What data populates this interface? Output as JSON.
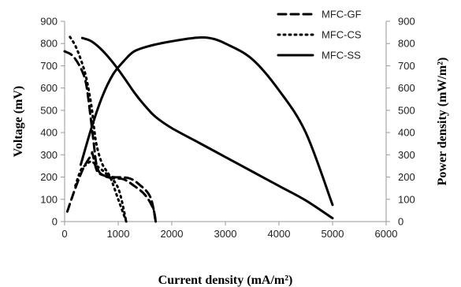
{
  "chart_data": {
    "type": "line",
    "title": "",
    "xlabel": "Current density (mA/m²)",
    "ylabel_left": "Voltage (mV)",
    "ylabel_right": "Power density (mW/m²)",
    "xlim": [
      0,
      6000
    ],
    "ylim_left": [
      0,
      900
    ],
    "ylim_right": [
      0,
      900
    ],
    "x_ticks": [
      "0",
      "1000",
      "2000",
      "3000",
      "4000",
      "5000",
      "6000"
    ],
    "y_ticks_left": [
      "0",
      "100",
      "200",
      "300",
      "400",
      "500",
      "600",
      "700",
      "800",
      "900"
    ],
    "y_ticks_right": [
      "0",
      "100",
      "200",
      "300",
      "400",
      "500",
      "600",
      "700",
      "800",
      "900"
    ],
    "grid": false,
    "legend_position": "top-right",
    "legend": [
      {
        "name": "MFC-GF",
        "dash": "10,6"
      },
      {
        "name": "MFC-CS",
        "dash": "2,5"
      },
      {
        "name": "MFC-SS",
        "dash": ""
      }
    ],
    "series": [
      {
        "name": "MFC-GF",
        "kind": "polarization",
        "axis": "left",
        "points": [
          [
            0,
            765
          ],
          [
            150,
            745
          ],
          [
            300,
            690
          ],
          [
            400,
            620
          ],
          [
            480,
            480
          ],
          [
            540,
            360
          ],
          [
            600,
            250
          ],
          [
            700,
            210
          ],
          [
            900,
            195
          ],
          [
            1100,
            190
          ],
          [
            1300,
            160
          ],
          [
            1500,
            120
          ],
          [
            1650,
            60
          ],
          [
            1700,
            0
          ]
        ]
      },
      {
        "name": "MFC-GF",
        "kind": "power",
        "axis": "right",
        "points": [
          [
            50,
            45
          ],
          [
            200,
            150
          ],
          [
            350,
            240
          ],
          [
            500,
            300
          ],
          [
            520,
            305
          ],
          [
            600,
            230
          ],
          [
            700,
            210
          ],
          [
            900,
            200
          ],
          [
            1200,
            195
          ],
          [
            1400,
            165
          ],
          [
            1600,
            110
          ],
          [
            1700,
            0
          ]
        ]
      },
      {
        "name": "MFC-CS",
        "kind": "polarization",
        "axis": "left",
        "points": [
          [
            100,
            830
          ],
          [
            200,
            790
          ],
          [
            300,
            730
          ],
          [
            400,
            650
          ],
          [
            500,
            520
          ],
          [
            550,
            420
          ],
          [
            600,
            340
          ],
          [
            700,
            260
          ],
          [
            850,
            200
          ],
          [
            1000,
            100
          ],
          [
            1150,
            0
          ]
        ]
      },
      {
        "name": "MFC-CS",
        "kind": "power",
        "axis": "right",
        "points": [
          [
            200,
            160
          ],
          [
            300,
            230
          ],
          [
            400,
            255
          ],
          [
            500,
            270
          ],
          [
            600,
            250
          ],
          [
            800,
            210
          ],
          [
            1000,
            150
          ],
          [
            1150,
            0
          ]
        ]
      },
      {
        "name": "MFC-SS",
        "kind": "polarization",
        "axis": "left",
        "points": [
          [
            330,
            825
          ],
          [
            500,
            810
          ],
          [
            700,
            770
          ],
          [
            900,
            715
          ],
          [
            1100,
            650
          ],
          [
            1300,
            580
          ],
          [
            1500,
            520
          ],
          [
            1700,
            470
          ],
          [
            2000,
            420
          ],
          [
            2500,
            355
          ],
          [
            3000,
            290
          ],
          [
            3500,
            225
          ],
          [
            4000,
            160
          ],
          [
            4500,
            95
          ],
          [
            5000,
            15
          ]
        ]
      },
      {
        "name": "MFC-SS",
        "kind": "power",
        "axis": "right",
        "points": [
          [
            300,
            255
          ],
          [
            500,
            420
          ],
          [
            700,
            560
          ],
          [
            900,
            660
          ],
          [
            1100,
            720
          ],
          [
            1300,
            765
          ],
          [
            1600,
            790
          ],
          [
            2000,
            810
          ],
          [
            2400,
            825
          ],
          [
            2700,
            825
          ],
          [
            3000,
            800
          ],
          [
            3500,
            730
          ],
          [
            4000,
            590
          ],
          [
            4500,
            400
          ],
          [
            5000,
            75
          ]
        ]
      }
    ]
  }
}
